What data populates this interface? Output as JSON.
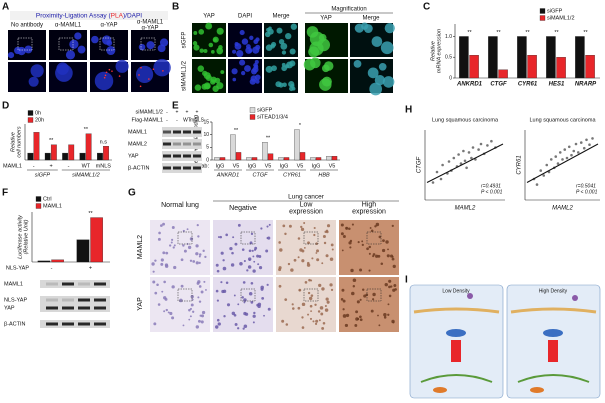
{
  "panels": {
    "A": {
      "letter": "A",
      "title": [
        "Proximity-Ligation Assay (",
        "PLA",
        ")/",
        "DAPI"
      ],
      "columns": [
        [
          "No antibody"
        ],
        [
          "α-MAML1"
        ],
        [
          "α-YAP"
        ],
        [
          "α-MAML1",
          "α-YAP"
        ]
      ]
    },
    "B": {
      "letter": "B",
      "columns": [
        "YAP",
        "DAPI",
        "Merge"
      ],
      "magnification": "Magnification",
      "mag_columns": [
        "YAP",
        "Merge"
      ],
      "rows": [
        "siGFP",
        "siMAML1/2"
      ]
    },
    "C": {
      "letter": "C"
    },
    "D": {
      "letter": "D",
      "blot": {
        "rows": [
          "siMAML1/2",
          "Flag-MAML1"
        ],
        "conditions": [
          [
            "-",
            "+",
            "+",
            "+"
          ],
          [
            "-",
            "-",
            "WT",
            "mNLS"
          ]
        ],
        "bands": [
          "MAML1",
          "MAML2",
          "YAP",
          "β-ACTIN"
        ]
      }
    },
    "E": {
      "letter": "E"
    },
    "F": {
      "letter": "F",
      "blot": {
        "bands": [
          "MAML1",
          "NLS-YAP",
          "YAP",
          "β-ACTIN"
        ]
      }
    },
    "G": {
      "letter": "G",
      "normal": "Normal lung",
      "cancer": "Lung cancer",
      "columns": [
        [
          "Negative"
        ],
        [
          "Low",
          "expression"
        ],
        [
          "High",
          "expression"
        ]
      ],
      "rows": [
        "MAML2",
        "YAP"
      ]
    },
    "H": {
      "letter": "H"
    },
    "I": {
      "letter": "I",
      "titles": [
        "Low Density",
        "High Density"
      ]
    }
  },
  "chart_data": [
    {
      "type": "bar",
      "ylabel": [
        "Relative",
        "mRNA expression"
      ],
      "categories": [
        "ANKRD1",
        "CTGF",
        "CYR61",
        "HES1",
        "NRARP"
      ],
      "series": [
        {
          "name": "siGFP",
          "color": "#111111",
          "values": [
            1.0,
            1.0,
            1.0,
            1.0,
            1.0
          ]
        },
        {
          "name": "siMAML1/2",
          "color": "#e8262a",
          "values": [
            0.55,
            0.2,
            0.55,
            0.5,
            0.55
          ]
        }
      ],
      "annotations": [
        "**",
        "**",
        "**",
        "**",
        "**"
      ],
      "ylim": [
        0,
        1.3
      ],
      "yticks": [
        0,
        0.5,
        {
          "value": 1,
          "label": "1.0"
        }
      ]
    },
    {
      "type": "bar",
      "ylabel": [
        "Relative",
        "cell numbers"
      ],
      "row_label": "MAML1",
      "categories": [
        "-",
        "+",
        "-",
        "WT",
        "mNLS"
      ],
      "groups": [
        "siGFP",
        "siMAML1/2"
      ],
      "series": [
        {
          "name": "0h",
          "color": "#111111",
          "values": [
            0.25,
            0.25,
            0.25,
            0.25,
            0.25
          ]
        },
        {
          "name": "20h",
          "color": "#e8262a",
          "values": [
            1.0,
            0.55,
            0.55,
            0.95,
            0.5
          ]
        }
      ],
      "annotations": [
        null,
        "**",
        null,
        "**",
        "n.s"
      ],
      "ylim": [
        0,
        1.3
      ]
    },
    {
      "type": "bar",
      "ylabel": [
        "Relative DNA binding"
      ],
      "row_label": "ChIP ab:",
      "categories": [
        "IgG",
        "V5",
        "IgG",
        "V5",
        "IgG",
        "V5",
        "IgG",
        "V5"
      ],
      "groups": [
        "ANKRD1",
        "CTGF",
        "CYR61",
        "HBB"
      ],
      "series": [
        {
          "name": "siGFP",
          "color": "#d9d9d9",
          "values": [
            1,
            10,
            1,
            7,
            1,
            12,
            1,
            1.5
          ]
        },
        {
          "name": "siTEAD1/3/4",
          "color": "#e8262a",
          "values": [
            1,
            3,
            1,
            2.5,
            1,
            3,
            1,
            1.5
          ]
        }
      ],
      "annotations": [
        null,
        "**",
        null,
        "**",
        null,
        "*",
        null,
        null
      ],
      "ylim": [
        0,
        15
      ],
      "yticks": [
        0,
        5,
        10,
        15
      ]
    },
    {
      "type": "bar",
      "ylabel": [
        "Luciferase activity",
        "(Relative Unit)"
      ],
      "row_label": "NLS-YAP",
      "categories": [
        "-",
        "+"
      ],
      "series": [
        {
          "name": "Ctrl",
          "color": "#111111",
          "values": [
            1,
            20
          ]
        },
        {
          "name": "MAML1",
          "color": "#e8262a",
          "values": [
            2,
            40
          ]
        }
      ],
      "annotations": [
        null,
        "**"
      ],
      "ylim": [
        0,
        45
      ]
    },
    {
      "type": "scatter",
      "title": "Lung squamous carcinoma",
      "xlabel": "MAML2",
      "ylabel": "CTGF",
      "stats": [
        "r=0.4931",
        "P < 0.001"
      ],
      "xlim": [
        0,
        10
      ],
      "ylim": [
        0,
        10
      ],
      "x": [
        1,
        1.5,
        2,
        2.2,
        2.8,
        3,
        3.3,
        3.6,
        4,
        4.2,
        4.5,
        4.8,
        5,
        5.2,
        5.5,
        5.8,
        6,
        6.3,
        6.7,
        7,
        7.4,
        7.8,
        8.3,
        8.8
      ],
      "values": [
        2.5,
        4,
        3,
        5,
        3.8,
        5.5,
        4.2,
        6,
        4.8,
        6.5,
        5.2,
        7,
        5.6,
        4.6,
        6.8,
        6,
        7.5,
        5.8,
        7.2,
        8,
        6.6,
        7.8,
        8.4,
        7.5
      ]
    },
    {
      "type": "scatter",
      "title": "Lung squamous carcinoma",
      "xlabel": "MAML2",
      "ylabel": "CYR61",
      "stats": [
        "r=0.5041",
        "P < 0.001"
      ],
      "xlim": [
        0,
        10
      ],
      "ylim": [
        0,
        10
      ],
      "x": [
        1.2,
        1.6,
        2.1,
        2.5,
        2.9,
        3.2,
        3.5,
        3.9,
        4.1,
        4.4,
        4.7,
        5,
        5.3,
        5.6,
        5.9,
        6.2,
        6.5,
        6.8,
        7.1,
        7.5,
        7.9,
        8.2,
        8.6,
        9
      ],
      "values": [
        3,
        2.2,
        4.2,
        3.5,
        5,
        4,
        5.8,
        4.6,
        6.2,
        5.2,
        6.8,
        5.8,
        7.2,
        6,
        7.6,
        6.4,
        7,
        8,
        6.8,
        8.2,
        7.4,
        8.6,
        7.9,
        8.8
      ]
    }
  ]
}
